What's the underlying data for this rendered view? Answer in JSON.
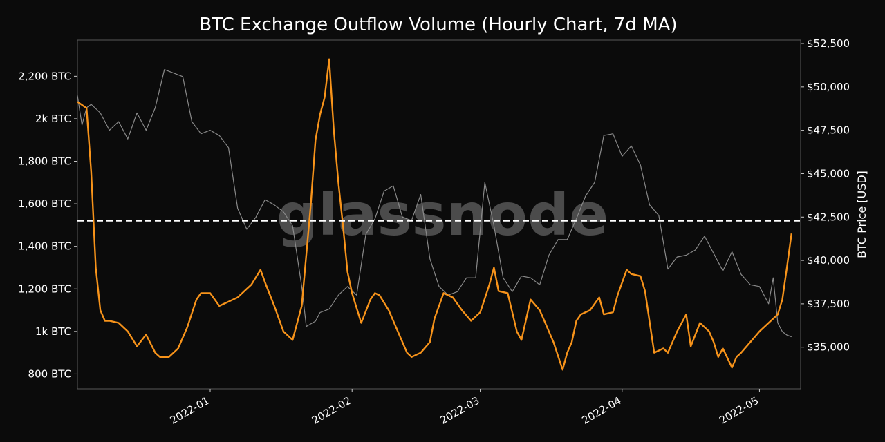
{
  "watermark": "glassnode",
  "chart_data": {
    "type": "line",
    "title": "BTC Exchange Outflow Volume (Hourly Chart, 7d MA)",
    "xlabel": "",
    "ylabel_left": "",
    "ylabel_right": "BTC Price [USD]",
    "x_ticks": [
      "2022-01",
      "2022-02",
      "2022-03",
      "2022-04",
      "2022-05"
    ],
    "x_tick_dates": [
      "2022-01-01",
      "2022-02-01",
      "2022-03-01",
      "2022-04-01",
      "2022-05-01"
    ],
    "xlim": [
      "2021-12-03",
      "2022-05-10"
    ],
    "y_left_ticks": [
      "800 BTC",
      "1k BTC",
      "1,200 BTC",
      "1,400 BTC",
      "1,600 BTC",
      "1,800 BTC",
      "2k BTC",
      "2,200 BTC"
    ],
    "y_left_values": [
      800,
      1000,
      1200,
      1400,
      1600,
      1800,
      2000,
      2200
    ],
    "ylim_left": [
      730,
      2370
    ],
    "y_right_ticks": [
      "$35,000",
      "$37,500",
      "$40,000",
      "$42,500",
      "$45,000",
      "$47,500",
      "$50,000",
      "$52,500"
    ],
    "y_right_values": [
      35000,
      37500,
      40000,
      42500,
      45000,
      47500,
      50000,
      52500
    ],
    "ylim_right": [
      32600,
      52700
    ],
    "reference_line": {
      "axis": "left",
      "value": 1520,
      "style": "dashed",
      "color": "#ffffff"
    },
    "grid": false,
    "colors": {
      "outflow": "#f7931a",
      "price": "#8a8a8a",
      "background": "#0b0b0b",
      "frame": "#5a5a5a"
    },
    "series": [
      {
        "axis": "left",
        "x": [
          "2021-12-03",
          "2021-12-05",
          "2021-12-06",
          "2021-12-07",
          "2021-12-08",
          "2021-12-09",
          "2021-12-10",
          "2021-12-12",
          "2021-12-14",
          "2021-12-16",
          "2021-12-18",
          "2021-12-20",
          "2021-12-21",
          "2021-12-23",
          "2021-12-25",
          "2021-12-27",
          "2021-12-29",
          "2021-12-30",
          "2022-01-01",
          "2022-01-03",
          "2022-01-05",
          "2022-01-07",
          "2022-01-09",
          "2022-01-10",
          "2022-01-12",
          "2022-01-13",
          "2022-01-15",
          "2022-01-16",
          "2022-01-17",
          "2022-01-19",
          "2022-01-21",
          "2022-01-23",
          "2022-01-24",
          "2022-01-25",
          "2022-01-26",
          "2022-01-27",
          "2022-01-28",
          "2022-01-29",
          "2022-01-30",
          "2022-01-31",
          "2022-02-01",
          "2022-02-02",
          "2022-02-03",
          "2022-02-05",
          "2022-02-06",
          "2022-02-07",
          "2022-02-09",
          "2022-02-11",
          "2022-02-13",
          "2022-02-14",
          "2022-02-16",
          "2022-02-18",
          "2022-02-19",
          "2022-02-21",
          "2022-02-23",
          "2022-02-25",
          "2022-02-27",
          "2022-03-01",
          "2022-03-03",
          "2022-03-04",
          "2022-03-05",
          "2022-03-07",
          "2022-03-09",
          "2022-03-10",
          "2022-03-12",
          "2022-03-14",
          "2022-03-15",
          "2022-03-17",
          "2022-03-19",
          "2022-03-20",
          "2022-03-21",
          "2022-03-22",
          "2022-03-23",
          "2022-03-25",
          "2022-03-27",
          "2022-03-28",
          "2022-03-30",
          "2022-03-31",
          "2022-04-02",
          "2022-04-03",
          "2022-04-05",
          "2022-04-06",
          "2022-04-08",
          "2022-04-10",
          "2022-04-11",
          "2022-04-12",
          "2022-04-13",
          "2022-04-15",
          "2022-04-16",
          "2022-04-18",
          "2022-04-20",
          "2022-04-21",
          "2022-04-22",
          "2022-04-23",
          "2022-04-25",
          "2022-04-26",
          "2022-04-27",
          "2022-04-29",
          "2022-05-01",
          "2022-05-03",
          "2022-05-05",
          "2022-05-06",
          "2022-05-07",
          "2022-05-08"
        ],
        "values": [
          2080,
          2050,
          1750,
          1300,
          1100,
          1050,
          1050,
          1040,
          1000,
          930,
          985,
          900,
          880,
          880,
          920,
          1020,
          1150,
          1180,
          1180,
          1120,
          1140,
          1160,
          1200,
          1220,
          1290,
          1230,
          1120,
          1060,
          1000,
          960,
          1120,
          1600,
          1900,
          2020,
          2100,
          2280,
          1950,
          1700,
          1500,
          1280,
          1180,
          1110,
          1040,
          1150,
          1180,
          1170,
          1100,
          1000,
          900,
          880,
          900,
          950,
          1060,
          1180,
          1160,
          1100,
          1050,
          1090,
          1220,
          1300,
          1190,
          1180,
          1000,
          960,
          1150,
          1100,
          1050,
          950,
          820,
          900,
          950,
          1050,
          1080,
          1100,
          1160,
          1080,
          1090,
          1170,
          1290,
          1270,
          1260,
          1190,
          900,
          920,
          900,
          950,
          1000,
          1080,
          930,
          1040,
          1000,
          950,
          880,
          920,
          830,
          880,
          900,
          950,
          1000,
          1040,
          1080,
          1150,
          1300,
          1460
        ]
      },
      {
        "axis": "right",
        "x": [
          "2021-12-03",
          "2021-12-04",
          "2021-12-05",
          "2021-12-06",
          "2021-12-08",
          "2021-12-10",
          "2021-12-12",
          "2021-12-14",
          "2021-12-16",
          "2021-12-18",
          "2021-12-20",
          "2021-12-22",
          "2021-12-24",
          "2021-12-26",
          "2021-12-28",
          "2021-12-30",
          "2022-01-01",
          "2022-01-03",
          "2022-01-05",
          "2022-01-07",
          "2022-01-09",
          "2022-01-11",
          "2022-01-13",
          "2022-01-15",
          "2022-01-17",
          "2022-01-19",
          "2022-01-21",
          "2022-01-22",
          "2022-01-24",
          "2022-01-25",
          "2022-01-27",
          "2022-01-29",
          "2022-01-31",
          "2022-02-02",
          "2022-02-04",
          "2022-02-06",
          "2022-02-08",
          "2022-02-10",
          "2022-02-12",
          "2022-02-14",
          "2022-02-16",
          "2022-02-18",
          "2022-02-20",
          "2022-02-22",
          "2022-02-24",
          "2022-02-26",
          "2022-02-28",
          "2022-03-02",
          "2022-03-04",
          "2022-03-06",
          "2022-03-08",
          "2022-03-10",
          "2022-03-12",
          "2022-03-14",
          "2022-03-16",
          "2022-03-18",
          "2022-03-20",
          "2022-03-22",
          "2022-03-24",
          "2022-03-26",
          "2022-03-28",
          "2022-03-30",
          "2022-04-01",
          "2022-04-03",
          "2022-04-05",
          "2022-04-07",
          "2022-04-09",
          "2022-04-11",
          "2022-04-13",
          "2022-04-15",
          "2022-04-17",
          "2022-04-19",
          "2022-04-21",
          "2022-04-23",
          "2022-04-25",
          "2022-04-27",
          "2022-04-29",
          "2022-05-01",
          "2022-05-03",
          "2022-05-04",
          "2022-05-05",
          "2022-05-06",
          "2022-05-07",
          "2022-05-08"
        ],
        "values": [
          49500,
          47800,
          48800,
          49000,
          48500,
          47500,
          48000,
          47000,
          48500,
          47500,
          48800,
          51000,
          50800,
          50600,
          48000,
          47300,
          47500,
          47200,
          46500,
          43000,
          41800,
          42500,
          43500,
          43200,
          42800,
          42000,
          38500,
          36200,
          36500,
          37000,
          37200,
          38000,
          38500,
          38000,
          41500,
          42400,
          44000,
          44300,
          42500,
          42300,
          43800,
          40100,
          38500,
          38000,
          38200,
          39000,
          39000,
          44500,
          42000,
          39000,
          38200,
          39100,
          39000,
          38600,
          40300,
          41200,
          41200,
          42400,
          43700,
          44500,
          47200,
          47300,
          46000,
          46600,
          45500,
          43200,
          42600,
          39500,
          40200,
          40300,
          40600,
          41400,
          40400,
          39400,
          40500,
          39200,
          38600,
          38500,
          37500,
          39000,
          36400,
          35900,
          35700,
          35600
        ]
      }
    ]
  }
}
